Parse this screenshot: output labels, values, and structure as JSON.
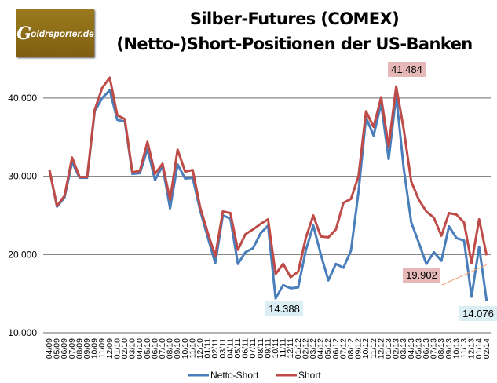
{
  "logo_text": "Goldreporter.de",
  "chart_data": {
    "type": "line",
    "title": "Silber-Futures (COMEX)",
    "subtitle": "(Netto-)Short-Positionen der US-Banken",
    "categories": [
      "04/09",
      "05/09",
      "06/09",
      "07/09",
      "08/09",
      "09/09",
      "10/09",
      "11/09",
      "12/09",
      "01/10",
      "02/10",
      "03/10",
      "04/10",
      "05/10",
      "06/10",
      "07/10",
      "08/10",
      "09/10",
      "10/10",
      "11/10",
      "12/10",
      "01/11",
      "02/11",
      "03/11",
      "04/11",
      "05/11",
      "06/11",
      "07/11",
      "08/11",
      "09/11",
      "10/11",
      "11/11",
      "12/11",
      "01/12",
      "02/12",
      "03/12",
      "04/12",
      "05/12",
      "06/12",
      "07/12",
      "08/12",
      "09/12",
      "10/12",
      "11/12",
      "12/12",
      "01/13",
      "02/13",
      "03/13",
      "04/13",
      "05/13",
      "06/13",
      "07/13",
      "08/13",
      "09/13",
      "10/13",
      "11/13",
      "12/13",
      "01/14",
      "02/14"
    ],
    "series": [
      {
        "name": "Netto-Short",
        "color": "#4a7ebb",
        "values": [
          30800,
          26100,
          27300,
          31800,
          29800,
          29800,
          38300,
          40000,
          41000,
          37200,
          37000,
          30300,
          30400,
          33500,
          29500,
          31300,
          25900,
          31500,
          29700,
          29800,
          25600,
          22200,
          18900,
          25000,
          24600,
          18800,
          20300,
          20800,
          22700,
          23700,
          14388,
          16100,
          15700,
          15800,
          20500,
          23700,
          20000,
          16700,
          18800,
          18300,
          20500,
          28000,
          37500,
          35200,
          39300,
          32200,
          40300,
          31000,
          24100,
          21500,
          18800,
          20300,
          19200,
          23600,
          22100,
          21800,
          14600,
          21000,
          14076
        ]
      },
      {
        "name": "Short",
        "color": "#be4b48",
        "values": [
          30800,
          26200,
          27500,
          32400,
          29900,
          29900,
          38500,
          41300,
          42600,
          37800,
          37300,
          30500,
          30700,
          34400,
          30300,
          31600,
          27000,
          33400,
          30600,
          30800,
          26000,
          22800,
          19800,
          25500,
          25300,
          20600,
          22600,
          23200,
          23900,
          24500,
          17500,
          18800,
          17100,
          17800,
          22100,
          25000,
          22300,
          22200,
          23200,
          26600,
          27100,
          30000,
          38300,
          36300,
          40100,
          33800,
          41484,
          36000,
          29300,
          27000,
          25500,
          24700,
          22400,
          25300,
          25100,
          24100,
          18900,
          24500,
          19902
        ]
      }
    ],
    "ylim": [
      10000,
      43000
    ],
    "yticks": [
      {
        "v": 10000,
        "label": "10.000"
      },
      {
        "v": 20000,
        "label": "20.000"
      },
      {
        "v": 30000,
        "label": "30.000"
      },
      {
        "v": 40000,
        "label": "40.000"
      }
    ],
    "grid": true,
    "legend": "bottom",
    "annotations": [
      {
        "series": 1,
        "index": 46,
        "text": "41.484",
        "bg": "#e6b9b8"
      },
      {
        "series": 1,
        "index": 58,
        "text": "19.902",
        "bg": "#e6b9b8"
      },
      {
        "series": 0,
        "index": 30,
        "text": "14.388",
        "bg": "#dbeef4"
      },
      {
        "series": 0,
        "index": 58,
        "text": "14.076",
        "bg": "#dbeef4"
      }
    ]
  }
}
